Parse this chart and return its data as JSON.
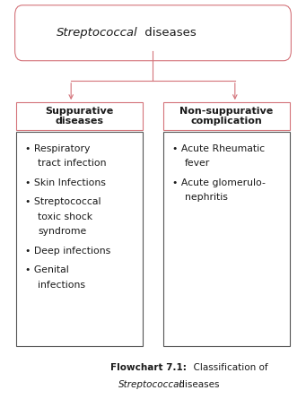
{
  "box_color": "#d4737a",
  "content_box_color": "#555555",
  "bg_color": "#ffffff",
  "text_color": "#1a1a1a",
  "left_header": "Suppurative\ndiseases",
  "right_header": "Non-suppurative\ncomplication",
  "left_items_line1": [
    "Respiratory",
    "Skin Infections",
    "Streptococcal",
    "Deep infections",
    "Genital"
  ],
  "left_items_line2": [
    "tract infection",
    "",
    "toxic shock",
    "",
    "infections"
  ],
  "left_items_line3": [
    "",
    "",
    "syndrome",
    "",
    ""
  ],
  "right_items_line1": [
    "Acute Rheumatic",
    "Acute glomerulo-"
  ],
  "right_items_line2": [
    "fever",
    "nephritis"
  ],
  "caption_bold": "Flowchart 7.1:",
  "caption_rest": "  Classification of",
  "caption_italic": "Streptococcal",
  "caption_end": " diseases",
  "title_italic": "Streptococcal",
  "title_normal": " diseases"
}
